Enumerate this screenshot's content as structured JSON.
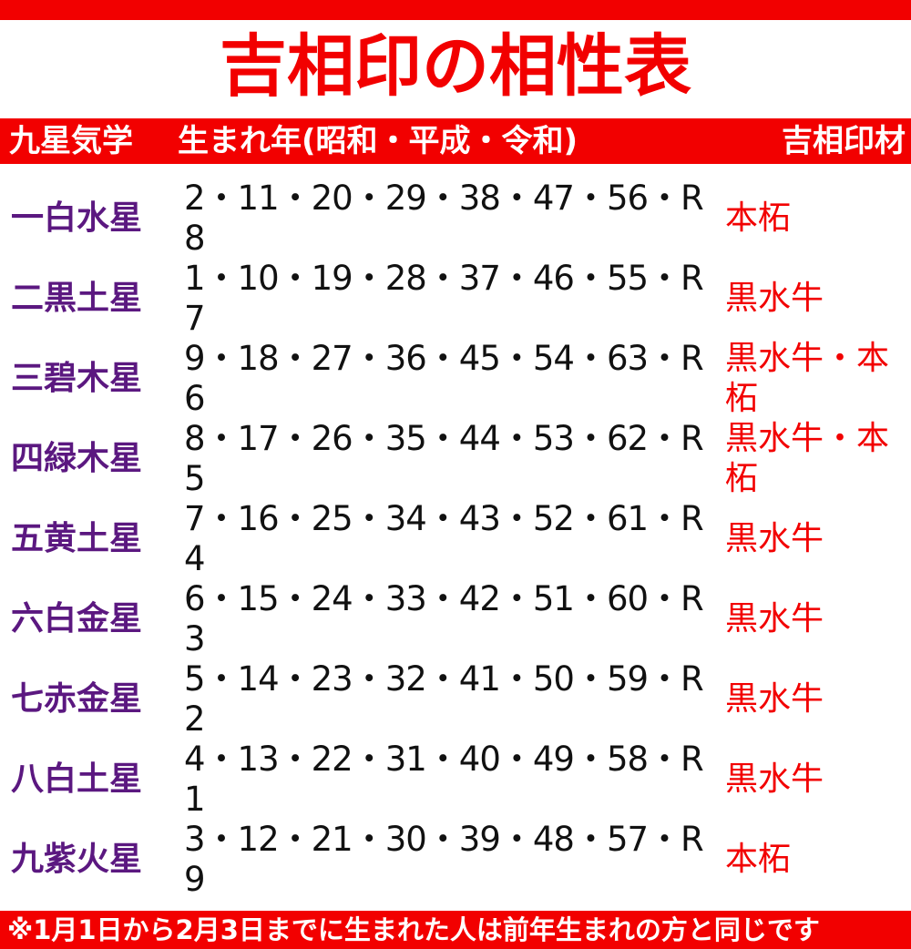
{
  "title": "吉相印の相性表",
  "header": {
    "col1": "九星気学",
    "col2": "生まれ年(昭和・平成・令和)",
    "col3": "吉相印材"
  },
  "rows": [
    {
      "star": "一白水星",
      "years": "2・11・20・29・38・47・56・R8",
      "material": "本柘"
    },
    {
      "star": "二黒土星",
      "years": "1・10・19・28・37・46・55・R7",
      "material": "黒水牛"
    },
    {
      "star": "三碧木星",
      "years": "9・18・27・36・45・54・63・R6",
      "material": "黒水牛・本柘"
    },
    {
      "star": "四緑木星",
      "years": "8・17・26・35・44・53・62・R5",
      "material": "黒水牛・本柘"
    },
    {
      "star": "五黄土星",
      "years": "7・16・25・34・43・52・61・R4",
      "material": "黒水牛"
    },
    {
      "star": "六白金星",
      "years": "6・15・24・33・42・51・60・R3",
      "material": "黒水牛"
    },
    {
      "star": "七赤金星",
      "years": "5・14・23・32・41・50・59・R2",
      "material": "黒水牛"
    },
    {
      "star": "八白土星",
      "years": "4・13・22・31・40・49・58・R1",
      "material": "黒水牛"
    },
    {
      "star": "九紫火星",
      "years": "3・12・21・30・39・48・57・R9",
      "material": "本柘"
    }
  ],
  "footer": "※1月1日から2月3日までに生まれた人は前年生まれの方と同じです",
  "colors": {
    "accent": "#f20000",
    "star": "#5b1880"
  }
}
